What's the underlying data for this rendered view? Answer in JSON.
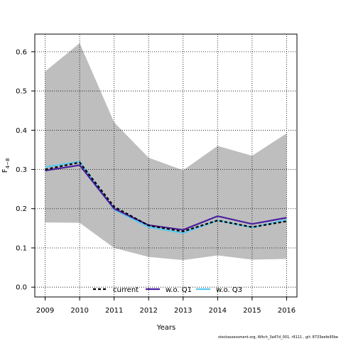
{
  "chart_data": {
    "type": "line",
    "xlabel": "Years",
    "ylabel": "F",
    "ylabel_subscript": "4−8",
    "x": [
      2009,
      2010,
      2011,
      2012,
      2013,
      2014,
      2015,
      2016
    ],
    "xticks": [
      "2009",
      "2010",
      "2011",
      "2012",
      "2013",
      "2014",
      "2015",
      "2016"
    ],
    "yticks": [
      "0.0",
      "0.1",
      "0.2",
      "0.3",
      "0.4",
      "0.5",
      "0.6"
    ],
    "xlim": [
      2008.7,
      2016.3
    ],
    "ylim": [
      -0.025,
      0.645
    ],
    "grid": true,
    "legend_position": "bottom",
    "confidence_band": {
      "color": "#bebebe",
      "lower": [
        0.165,
        0.164,
        0.1,
        0.077,
        0.069,
        0.081,
        0.07,
        0.072
      ],
      "upper": [
        0.55,
        0.622,
        0.42,
        0.33,
        0.298,
        0.36,
        0.335,
        0.392
      ]
    },
    "series": [
      {
        "name": "w.o. Q3",
        "color": "#5bc8f0",
        "style": "solid",
        "values": [
          0.306,
          0.32,
          0.198,
          0.153,
          0.138,
          0.17,
          0.152,
          0.172
        ]
      },
      {
        "name": "w.o. Q1",
        "color": "#4a1ea0",
        "style": "solid",
        "values": [
          0.297,
          0.311,
          0.2,
          0.158,
          0.146,
          0.181,
          0.161,
          0.177
        ]
      },
      {
        "name": "current",
        "color": "#000000",
        "style": "dashed",
        "values": [
          0.3,
          0.318,
          0.205,
          0.157,
          0.142,
          0.17,
          0.153,
          0.168
        ]
      }
    ],
    "legend_order": [
      "current",
      "w.o. Q1",
      "w.o. Q3"
    ]
  },
  "footer": "stockassessment.org, Witch_3a47d_001, r9111 , git: 8733eefe95be"
}
